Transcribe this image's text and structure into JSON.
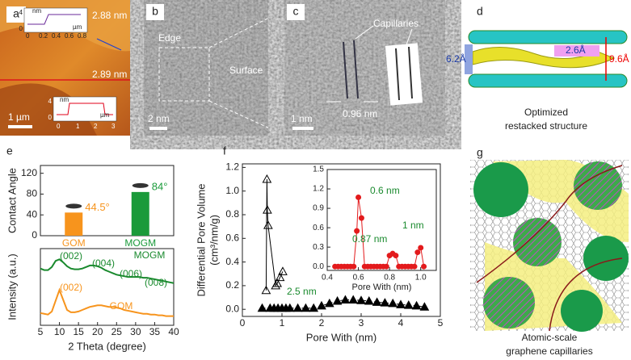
{
  "panels": {
    "a": {
      "label": "a",
      "top_peak": "2.88 nm",
      "bottom_peak": "2.89 nm",
      "scale": "1 µm",
      "top_inset": {
        "unit_y": "nm",
        "unit_x": "µm",
        "ticks_y": [
          "4",
          "0"
        ],
        "ticks_x": [
          "0",
          "0.2",
          "0.4",
          "0.6",
          "0.8"
        ]
      },
      "bottom_inset": {
        "unit_y": "nm",
        "unit_x": "µm",
        "ticks_y": [
          "4",
          "0"
        ],
        "ticks_x": [
          "0",
          "1",
          "2",
          "3"
        ]
      }
    },
    "b": {
      "label": "b",
      "edge": "Edge",
      "surface": "Surface",
      "scale": "2 nm"
    },
    "c": {
      "label": "c",
      "capillaries": "Capillaries",
      "width": "0.96 nm",
      "scale": "1 nm"
    },
    "d": {
      "label": "d",
      "gap1": "6.2Å",
      "gap2": "2.6Å",
      "gap3": "9.6Å",
      "caption": [
        "Optimized",
        "restacked structure"
      ]
    },
    "e": {
      "label": "e"
    },
    "f": {
      "label": "f"
    },
    "g": {
      "label": "g",
      "caption": [
        "Atomic-scale",
        "graphene capillaries"
      ]
    }
  },
  "chart_data": [
    {
      "type": "bar",
      "y_label": "Contact Angle",
      "categories": [
        "GOM",
        "MOGM"
      ],
      "values": [
        44.5,
        84
      ],
      "value_labels": [
        "44.5°",
        "84°"
      ],
      "colors": [
        "#f7941d",
        "#1a9a3a"
      ],
      "ylim": [
        0,
        135
      ],
      "yticks": [
        0,
        40,
        80,
        120
      ]
    },
    {
      "type": "line",
      "x_label": "2 Theta (degree)",
      "y_label": "Intensity (a.u.)",
      "xlim": [
        5,
        40
      ],
      "xticks": [
        5,
        10,
        15,
        20,
        25,
        30,
        35,
        40
      ],
      "ylim": [
        0,
        10
      ],
      "x": [
        5,
        6,
        7,
        8,
        9,
        10,
        11,
        12,
        13,
        14,
        15,
        16,
        17,
        18,
        19,
        20,
        21,
        22,
        23,
        24,
        25,
        26,
        27,
        28,
        29,
        30,
        31,
        32,
        33,
        34,
        35,
        36,
        37,
        38,
        39,
        40
      ],
      "series": [
        {
          "name": "MOGM",
          "color": "#1a8a2e",
          "values": [
            7.4,
            7.2,
            7.2,
            7.6,
            8.4,
            8.6,
            8.2,
            7.7,
            7.4,
            7.3,
            7.3,
            7.4,
            7.6,
            7.8,
            7.8,
            7.7,
            7.5,
            7.2,
            7.0,
            6.8,
            6.6,
            6.5,
            6.4,
            6.3,
            6.3,
            6.3,
            6.3,
            6.2,
            6.2,
            6.1,
            6.0,
            5.9,
            5.8,
            5.7,
            5.6,
            5.5
          ]
        },
        {
          "name": "GOM",
          "color": "#f7941d",
          "values": [
            1.6,
            1.5,
            1.4,
            1.8,
            3.2,
            4.6,
            3.3,
            2.0,
            1.7,
            1.7,
            1.8,
            2.0,
            2.2,
            2.4,
            2.5,
            2.6,
            2.6,
            2.5,
            2.4,
            2.4,
            2.3,
            2.2,
            2.0,
            1.9,
            1.8,
            1.7,
            1.6,
            1.5,
            1.5,
            1.4,
            1.4,
            1.3,
            1.3,
            1.2,
            1.2,
            1.2
          ]
        }
      ],
      "annotations": [
        "(002)",
        "(004)",
        "(006)",
        "(008)",
        "(002)"
      ]
    },
    {
      "type": "scatter",
      "x_label": "Pore With (nm)",
      "y_label": [
        "Differential Pore Volume",
        "(cm³/nm/g)"
      ],
      "xlim": [
        0,
        5
      ],
      "xticks": [
        0,
        1,
        2,
        3,
        4,
        5
      ],
      "ylim": [
        -0.06,
        1.23
      ],
      "yticks": [
        {
          "value": 0,
          "label": "0.0"
        },
        0.2,
        0.4,
        0.6,
        0.8,
        {
          "value": 1,
          "label": "1.0"
        },
        1.2
      ],
      "series": [
        {
          "color": "#000000",
          "marker_fill": "none",
          "line": "solid",
          "x": [
            0.6,
            0.62,
            0.63,
            0.65,
            0.84,
            0.88,
            0.95,
            1.02
          ],
          "values": [
            0.16,
            1.1,
            0.84,
            0.71,
            0.2,
            0.22,
            0.27,
            0.32
          ]
        },
        {
          "color": "#000000",
          "marker_fill": "#000000",
          "line": "dashed",
          "x": [
            0.5,
            0.7,
            0.8,
            0.9,
            1.0,
            1.1,
            1.2,
            1.4,
            1.6,
            1.8,
            2.0,
            2.2,
            2.4,
            2.6,
            2.8,
            3.0,
            3.2,
            3.4,
            3.6,
            3.8,
            4.0,
            4.2,
            4.4,
            4.6
          ],
          "values": [
            0.01,
            0.01,
            0.01,
            0.01,
            0.01,
            0.01,
            0.01,
            0.01,
            0.01,
            0.01,
            0.03,
            0.05,
            0.07,
            0.08,
            0.08,
            0.075,
            0.07,
            0.06,
            0.055,
            0.05,
            0.04,
            0.035,
            0.03,
            0.02
          ]
        }
      ],
      "annotations": [
        "2.5 nm"
      ]
    },
    {
      "type": "scatter",
      "x_label": "Pore With (nm)",
      "xlim": [
        0.4,
        1.1
      ],
      "xticks": [
        0.4,
        0.6,
        0.8,
        {
          "value": 1,
          "label": "1.0"
        }
      ],
      "ylim": [
        -0.06,
        1.5
      ],
      "yticks": [
        {
          "value": 0,
          "label": "0.0"
        },
        0.3,
        0.6,
        0.9,
        1.2,
        1.5
      ],
      "series": [
        {
          "color": "#e31a1c",
          "marker_fill": "#e31a1c",
          "line": "solid",
          "x": [
            0.45,
            0.47,
            0.49,
            0.51,
            0.53,
            0.55,
            0.57,
            0.59,
            0.6,
            0.62,
            0.64,
            0.66,
            0.68,
            0.7,
            0.72,
            0.74,
            0.76,
            0.78,
            0.8,
            0.82,
            0.84,
            0.86,
            0.88,
            0.9,
            0.92,
            0.94,
            0.96,
            0.98,
            1.0,
            1.02
          ],
          "values": [
            0,
            0,
            0,
            0,
            0,
            0,
            0,
            0.55,
            1.07,
            0.75,
            0,
            0,
            0,
            0,
            0,
            0,
            0,
            0,
            0.17,
            0.2,
            0.17,
            0,
            0,
            0,
            0,
            0,
            0,
            0.22,
            0.29,
            0
          ]
        }
      ],
      "annotations": [
        "0.6 nm",
        "0.87 nm",
        "1 nm"
      ]
    }
  ]
}
